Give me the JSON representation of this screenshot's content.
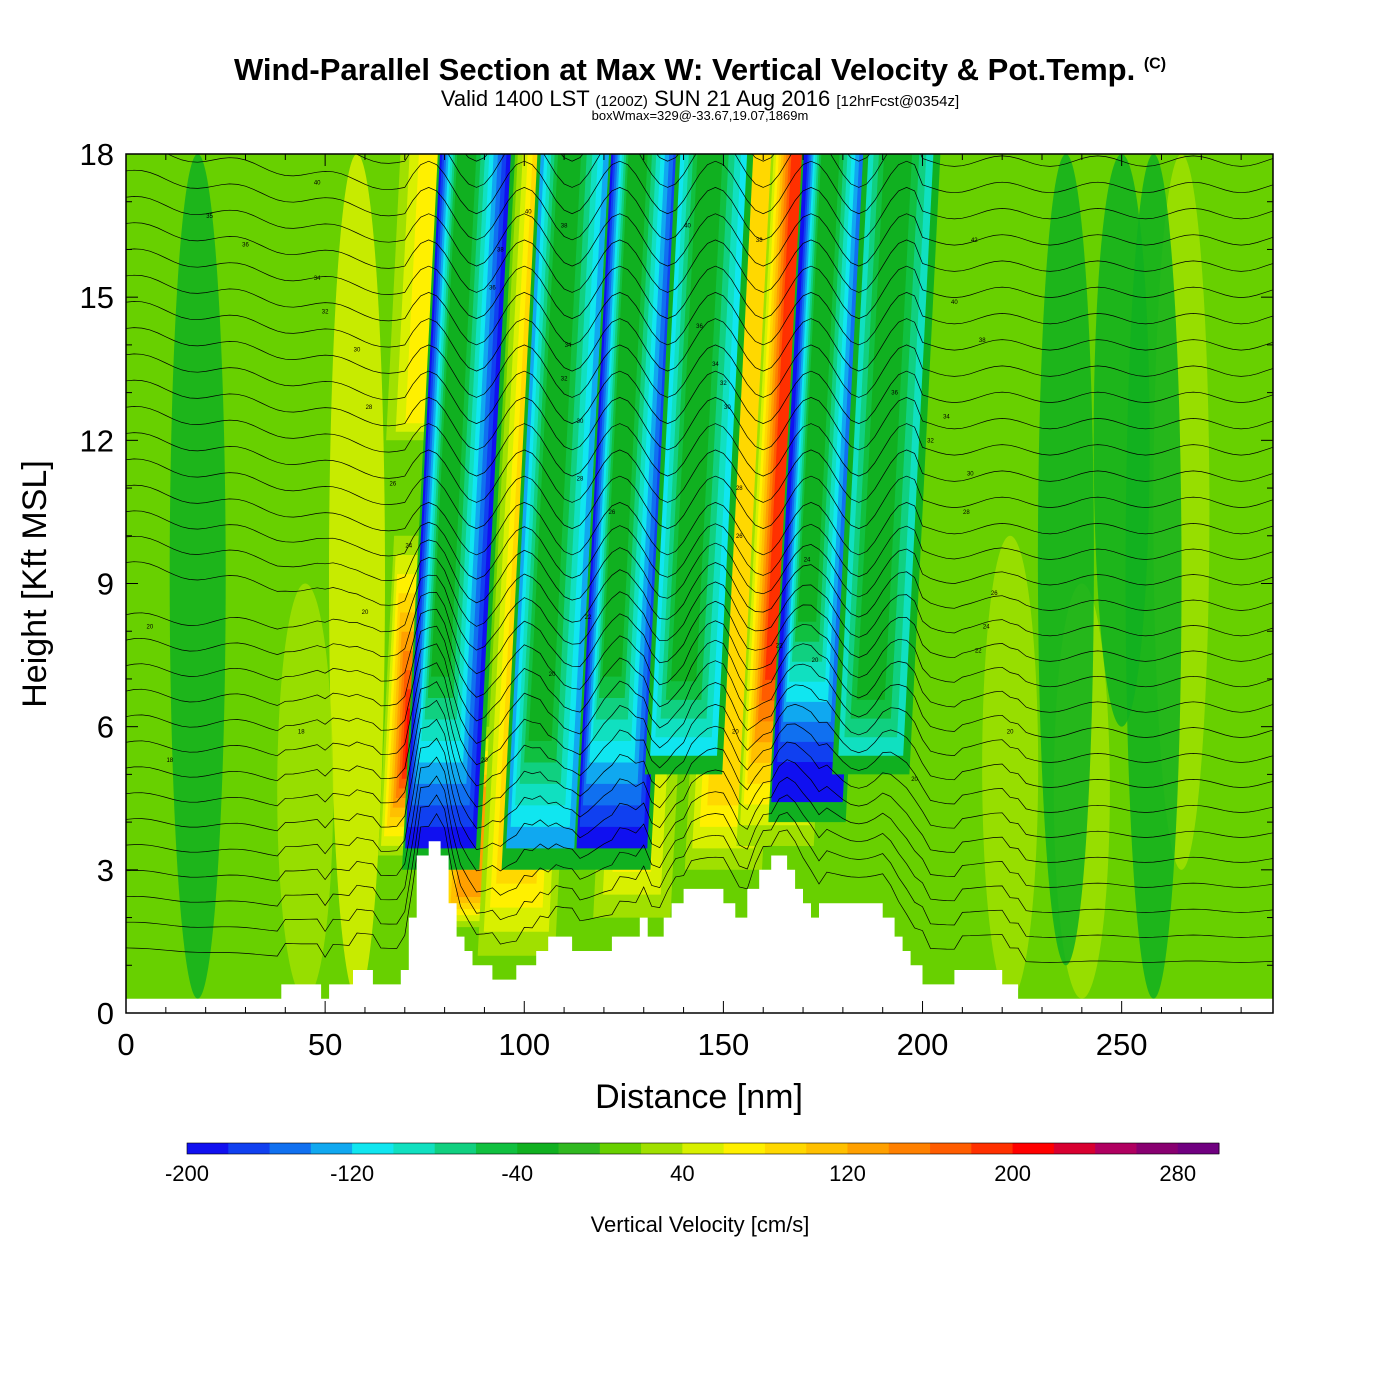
{
  "header": {
    "title": "Wind-Parallel Section at Max W: Vertical Velocity & Pot.Temp.",
    "title_mark": "(C)",
    "valid_prefix": "Valid 1400 LST",
    "valid_utc": "(1200Z)",
    "valid_date": "SUN 21 Aug 2016",
    "forecast": "[12hrFcst@0354z]",
    "boxwmax": "boxWmax=329@-33.67,19.07,1869m"
  },
  "chart_data": {
    "type": "heatmap",
    "xlabel": "Distance [nm]",
    "ylabel": "Height [Kft MSL]",
    "xlim": [
      0,
      288
    ],
    "ylim": [
      0,
      18
    ],
    "xticks": [
      0,
      50,
      100,
      150,
      200,
      250
    ],
    "yticks": [
      0,
      3,
      6,
      9,
      12,
      15,
      18
    ],
    "colorbar": {
      "label": "Vertical Velocity [cm/s]",
      "levels": [
        -200,
        -180,
        -160,
        -140,
        -120,
        -100,
        -80,
        -60,
        -40,
        -20,
        0,
        20,
        40,
        60,
        80,
        100,
        120,
        140,
        160,
        180,
        200,
        220,
        240,
        260,
        280,
        300
      ],
      "colors": [
        "#1010f0",
        "#1040f0",
        "#1070f0",
        "#10a8f0",
        "#10e6f0",
        "#10e0c0",
        "#10d080",
        "#10c040",
        "#10b020",
        "#30b820",
        "#68d000",
        "#a0e000",
        "#d8f000",
        "#fff000",
        "#ffd800",
        "#ffc000",
        "#ffa000",
        "#ff8000",
        "#ff5c00",
        "#ff3000",
        "#ff0000",
        "#d80030",
        "#b00060",
        "#880070",
        "#700080"
      ],
      "tick_labels": [
        -200,
        -120,
        -40,
        40,
        120,
        200,
        280
      ]
    },
    "background_value_cm_s": 10,
    "updraft_bands": [
      {
        "x": 73,
        "ybot": 3.3,
        "ytop": 10,
        "peak": 230
      },
      {
        "x": 86,
        "ybot": 1.8,
        "ytop": 6,
        "peak": 120
      },
      {
        "x": 75,
        "ybot": 12,
        "ytop": 18,
        "peak": 60
      },
      {
        "x": 98,
        "ybot": 1.2,
        "ytop": 18,
        "peak": 110
      },
      {
        "x": 113,
        "ybot": 4,
        "ytop": 18,
        "peak": 90
      },
      {
        "x": 127,
        "ybot": 2,
        "ytop": 18,
        "peak": 60
      },
      {
        "x": 150,
        "ybot": 3,
        "ytop": 18,
        "peak": 90
      },
      {
        "x": 163,
        "ybot": 3.5,
        "ytop": 18,
        "peak": 190
      },
      {
        "x": 175,
        "ybot": 5,
        "ytop": 18,
        "peak": 80
      }
    ],
    "downdraft_bands": [
      {
        "x": 79,
        "ybot": 3,
        "ytop": 18,
        "peak": -190
      },
      {
        "x": 104,
        "ybot": 3,
        "ytop": 18,
        "peak": -130
      },
      {
        "x": 122,
        "ybot": 3,
        "ytop": 18,
        "peak": -180
      },
      {
        "x": 140,
        "ybot": 5,
        "ytop": 18,
        "peak": -110
      },
      {
        "x": 171,
        "ybot": 4,
        "ytop": 18,
        "peak": -200
      },
      {
        "x": 187,
        "ybot": 5,
        "ytop": 18,
        "peak": -90
      }
    ],
    "terrain_kft": [
      [
        0,
        0.3
      ],
      [
        39,
        0.3
      ],
      [
        39,
        0.6
      ],
      [
        49,
        0.6
      ],
      [
        49,
        0.3
      ],
      [
        51,
        0.3
      ],
      [
        51,
        0.6
      ],
      [
        57,
        0.6
      ],
      [
        57,
        0.9
      ],
      [
        62,
        0.9
      ],
      [
        62,
        0.6
      ],
      [
        69,
        0.6
      ],
      [
        69,
        0.9
      ],
      [
        71,
        0.9
      ],
      [
        71,
        2.0
      ],
      [
        73,
        2.0
      ],
      [
        73,
        3.3
      ],
      [
        76,
        3.3
      ],
      [
        76,
        3.6
      ],
      [
        79,
        3.6
      ],
      [
        79,
        3.3
      ],
      [
        81,
        3.3
      ],
      [
        81,
        2.3
      ],
      [
        83,
        2.3
      ],
      [
        83,
        1.6
      ],
      [
        85,
        1.6
      ],
      [
        85,
        1.3
      ],
      [
        87,
        1.3
      ],
      [
        87,
        1.0
      ],
      [
        92,
        1.0
      ],
      [
        92,
        0.7
      ],
      [
        98,
        0.7
      ],
      [
        98,
        1.0
      ],
      [
        103,
        1.0
      ],
      [
        103,
        1.3
      ],
      [
        106,
        1.3
      ],
      [
        106,
        1.6
      ],
      [
        112,
        1.6
      ],
      [
        112,
        1.3
      ],
      [
        122,
        1.3
      ],
      [
        122,
        1.6
      ],
      [
        129,
        1.6
      ],
      [
        129,
        2.0
      ],
      [
        131,
        2.0
      ],
      [
        131,
        1.6
      ],
      [
        135,
        1.6
      ],
      [
        135,
        2.0
      ],
      [
        137,
        2.0
      ],
      [
        137,
        2.3
      ],
      [
        140,
        2.3
      ],
      [
        140,
        2.6
      ],
      [
        150,
        2.6
      ],
      [
        150,
        2.3
      ],
      [
        153,
        2.3
      ],
      [
        153,
        2.0
      ],
      [
        156,
        2.0
      ],
      [
        156,
        2.6
      ],
      [
        159,
        2.6
      ],
      [
        159,
        3.0
      ],
      [
        162,
        3.0
      ],
      [
        162,
        3.3
      ],
      [
        166,
        3.3
      ],
      [
        166,
        3.0
      ],
      [
        168,
        3.0
      ],
      [
        168,
        2.6
      ],
      [
        170,
        2.6
      ],
      [
        170,
        2.3
      ],
      [
        172,
        2.3
      ],
      [
        172,
        2.0
      ],
      [
        174,
        2.0
      ],
      [
        174,
        2.3
      ],
      [
        190,
        2.3
      ],
      [
        190,
        2.0
      ],
      [
        193,
        2.0
      ],
      [
        193,
        1.6
      ],
      [
        195,
        1.6
      ],
      [
        195,
        1.3
      ],
      [
        197,
        1.3
      ],
      [
        197,
        1.0
      ],
      [
        200,
        1.0
      ],
      [
        200,
        0.6
      ],
      [
        208,
        0.6
      ],
      [
        208,
        0.9
      ],
      [
        220,
        0.9
      ],
      [
        220,
        0.6
      ],
      [
        224,
        0.6
      ],
      [
        224,
        0.3
      ],
      [
        288,
        0.3
      ]
    ],
    "theta_contour_labels": [
      {
        "x": 48,
        "y": 17.4,
        "text": "40"
      },
      {
        "x": 21,
        "y": 16.7,
        "text": "35"
      },
      {
        "x": 30,
        "y": 16.1,
        "text": "36"
      },
      {
        "x": 48,
        "y": 15.4,
        "text": "34"
      },
      {
        "x": 50,
        "y": 14.7,
        "text": "32"
      },
      {
        "x": 58,
        "y": 13.9,
        "text": "30"
      },
      {
        "x": 61,
        "y": 12.7,
        "text": "28"
      },
      {
        "x": 67,
        "y": 11.1,
        "text": "26"
      },
      {
        "x": 71,
        "y": 9.8,
        "text": "24"
      },
      {
        "x": 60,
        "y": 8.4,
        "text": "20"
      },
      {
        "x": 6,
        "y": 8.1,
        "text": "20"
      },
      {
        "x": 44,
        "y": 5.9,
        "text": "18"
      },
      {
        "x": 11,
        "y": 5.3,
        "text": "18"
      },
      {
        "x": 90,
        "y": 5.3,
        "text": "20"
      },
      {
        "x": 101,
        "y": 16.8,
        "text": "40"
      },
      {
        "x": 110,
        "y": 16.5,
        "text": "38"
      },
      {
        "x": 94,
        "y": 16.0,
        "text": "38"
      },
      {
        "x": 92,
        "y": 15.2,
        "text": "36"
      },
      {
        "x": 111,
        "y": 14.0,
        "text": "34"
      },
      {
        "x": 110,
        "y": 13.3,
        "text": "32"
      },
      {
        "x": 114,
        "y": 12.4,
        "text": "30"
      },
      {
        "x": 114,
        "y": 11.2,
        "text": "28"
      },
      {
        "x": 122,
        "y": 10.5,
        "text": "26"
      },
      {
        "x": 116,
        "y": 8.3,
        "text": "22"
      },
      {
        "x": 107,
        "y": 7.1,
        "text": "20"
      },
      {
        "x": 141,
        "y": 16.5,
        "text": "40"
      },
      {
        "x": 159,
        "y": 16.2,
        "text": "38"
      },
      {
        "x": 144,
        "y": 14.4,
        "text": "36"
      },
      {
        "x": 148,
        "y": 13.6,
        "text": "34"
      },
      {
        "x": 150,
        "y": 13.2,
        "text": "32"
      },
      {
        "x": 151,
        "y": 12.7,
        "text": "30"
      },
      {
        "x": 154,
        "y": 11.0,
        "text": "28"
      },
      {
        "x": 154,
        "y": 10.0,
        "text": "26"
      },
      {
        "x": 171,
        "y": 9.5,
        "text": "24"
      },
      {
        "x": 164,
        "y": 7.7,
        "text": "22"
      },
      {
        "x": 173,
        "y": 7.4,
        "text": "20"
      },
      {
        "x": 153,
        "y": 5.9,
        "text": "20"
      },
      {
        "x": 213,
        "y": 16.2,
        "text": "42"
      },
      {
        "x": 208,
        "y": 14.9,
        "text": "40"
      },
      {
        "x": 215,
        "y": 14.1,
        "text": "38"
      },
      {
        "x": 193,
        "y": 13.0,
        "text": "36"
      },
      {
        "x": 206,
        "y": 12.5,
        "text": "34"
      },
      {
        "x": 202,
        "y": 12.0,
        "text": "32"
      },
      {
        "x": 212,
        "y": 11.3,
        "text": "30"
      },
      {
        "x": 211,
        "y": 10.5,
        "text": "28"
      },
      {
        "x": 218,
        "y": 8.8,
        "text": "26"
      },
      {
        "x": 216,
        "y": 8.1,
        "text": "24"
      },
      {
        "x": 214,
        "y": 7.6,
        "text": "22"
      },
      {
        "x": 222,
        "y": 5.9,
        "text": "20"
      },
      {
        "x": 198,
        "y": 4.9,
        "text": "20"
      }
    ]
  }
}
